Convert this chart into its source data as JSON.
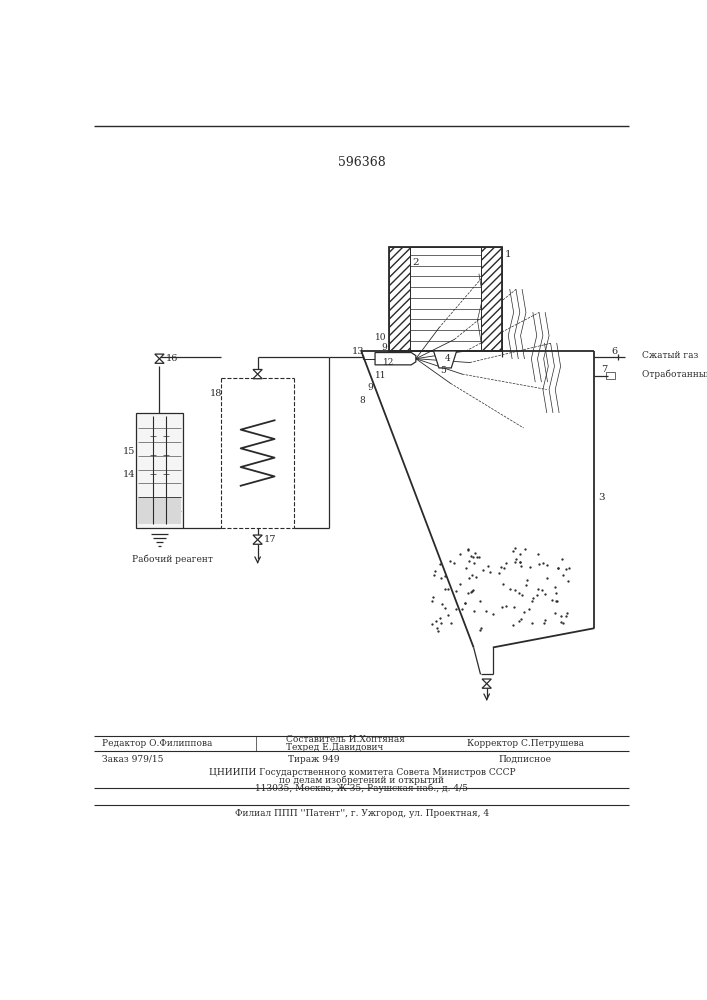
{
  "patent_number": "596368",
  "background_color": "#ffffff",
  "line_color": "#2a2a2a",
  "labels": {
    "compressed_gas": "Сжатый газ",
    "exhaust_gas": "Отработанный га",
    "working_reagent": "Рабочий реагент",
    "editor": "Редактор О.Филиппова",
    "composer": "Составитель И.Хоптяная",
    "tech": "Техред Е.Давидович",
    "corrector": "Корректор С.Петрушева",
    "order": "Заказ 979/15",
    "circulation": "Тираж 949",
    "subscription": "Подписное",
    "cniip": "ЦНИИПИ Государственного комитета Совета Министров СССР",
    "affairs": "по делам изобретений и открытий",
    "address": "113035, Москва, Ж-35, Раушская наб., д. 4/5",
    "branch": "Филиал ППП ''Патент'', г. Ужгород, ул. Проектная, 4"
  }
}
